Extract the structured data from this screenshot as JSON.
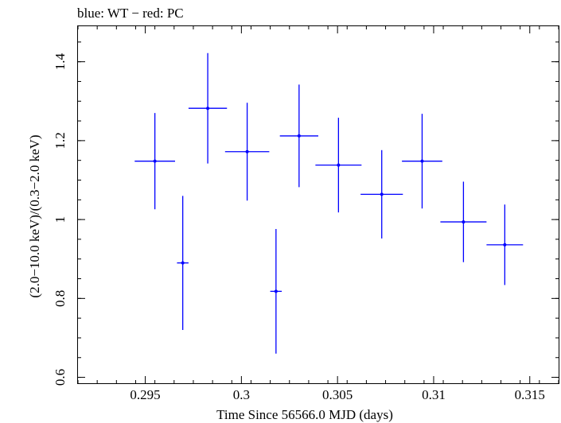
{
  "chart_data": {
    "type": "scatter",
    "title": "blue: WT − red: PC",
    "xlabel": "Time Since 56566.0 MJD (days)",
    "ylabel": "(2.0−10.0 keV)/(0.3−2.0 keV)",
    "xlim": [
      0.2915,
      0.3165
    ],
    "ylim": [
      0.585,
      1.49
    ],
    "x_ticks": [
      0.295,
      0.3,
      0.305,
      0.31,
      0.315
    ],
    "x_tick_labels": [
      "0.295",
      "0.3",
      "0.305",
      "0.31",
      "0.315"
    ],
    "y_ticks": [
      0.6,
      0.8,
      1.0,
      1.2,
      1.4
    ],
    "y_tick_labels": [
      "0.6",
      "0.8",
      "1",
      "1.2",
      "1.4"
    ],
    "grid": false,
    "series": [
      {
        "color": "#0000ff",
        "points": [
          {
            "x": 0.2955,
            "y": 1.148,
            "xerr": 0.00105,
            "yerr_low": 0.122,
            "yerr_high": 0.122
          },
          {
            "x": 0.29695,
            "y": 0.89,
            "xerr": 0.0003,
            "yerr_low": 0.17,
            "yerr_high": 0.17
          },
          {
            "x": 0.29825,
            "y": 1.282,
            "xerr": 0.001,
            "yerr_low": 0.14,
            "yerr_high": 0.14
          },
          {
            "x": 0.3003,
            "y": 1.172,
            "xerr": 0.00115,
            "yerr_low": 0.124,
            "yerr_high": 0.124
          },
          {
            "x": 0.3018,
            "y": 0.818,
            "xerr": 0.0003,
            "yerr_low": 0.158,
            "yerr_high": 0.158
          },
          {
            "x": 0.303,
            "y": 1.212,
            "xerr": 0.001,
            "yerr_low": 0.13,
            "yerr_high": 0.13
          },
          {
            "x": 0.30505,
            "y": 1.138,
            "xerr": 0.0012,
            "yerr_low": 0.12,
            "yerr_high": 0.12
          },
          {
            "x": 0.3073,
            "y": 1.064,
            "xerr": 0.0011,
            "yerr_low": 0.112,
            "yerr_high": 0.112
          },
          {
            "x": 0.3094,
            "y": 1.148,
            "xerr": 0.00105,
            "yerr_low": 0.12,
            "yerr_high": 0.12
          },
          {
            "x": 0.31155,
            "y": 0.994,
            "xerr": 0.0012,
            "yerr_low": 0.102,
            "yerr_high": 0.102
          },
          {
            "x": 0.3137,
            "y": 0.936,
            "xerr": 0.00095,
            "yerr_low": 0.102,
            "yerr_high": 0.102
          }
        ]
      }
    ]
  }
}
